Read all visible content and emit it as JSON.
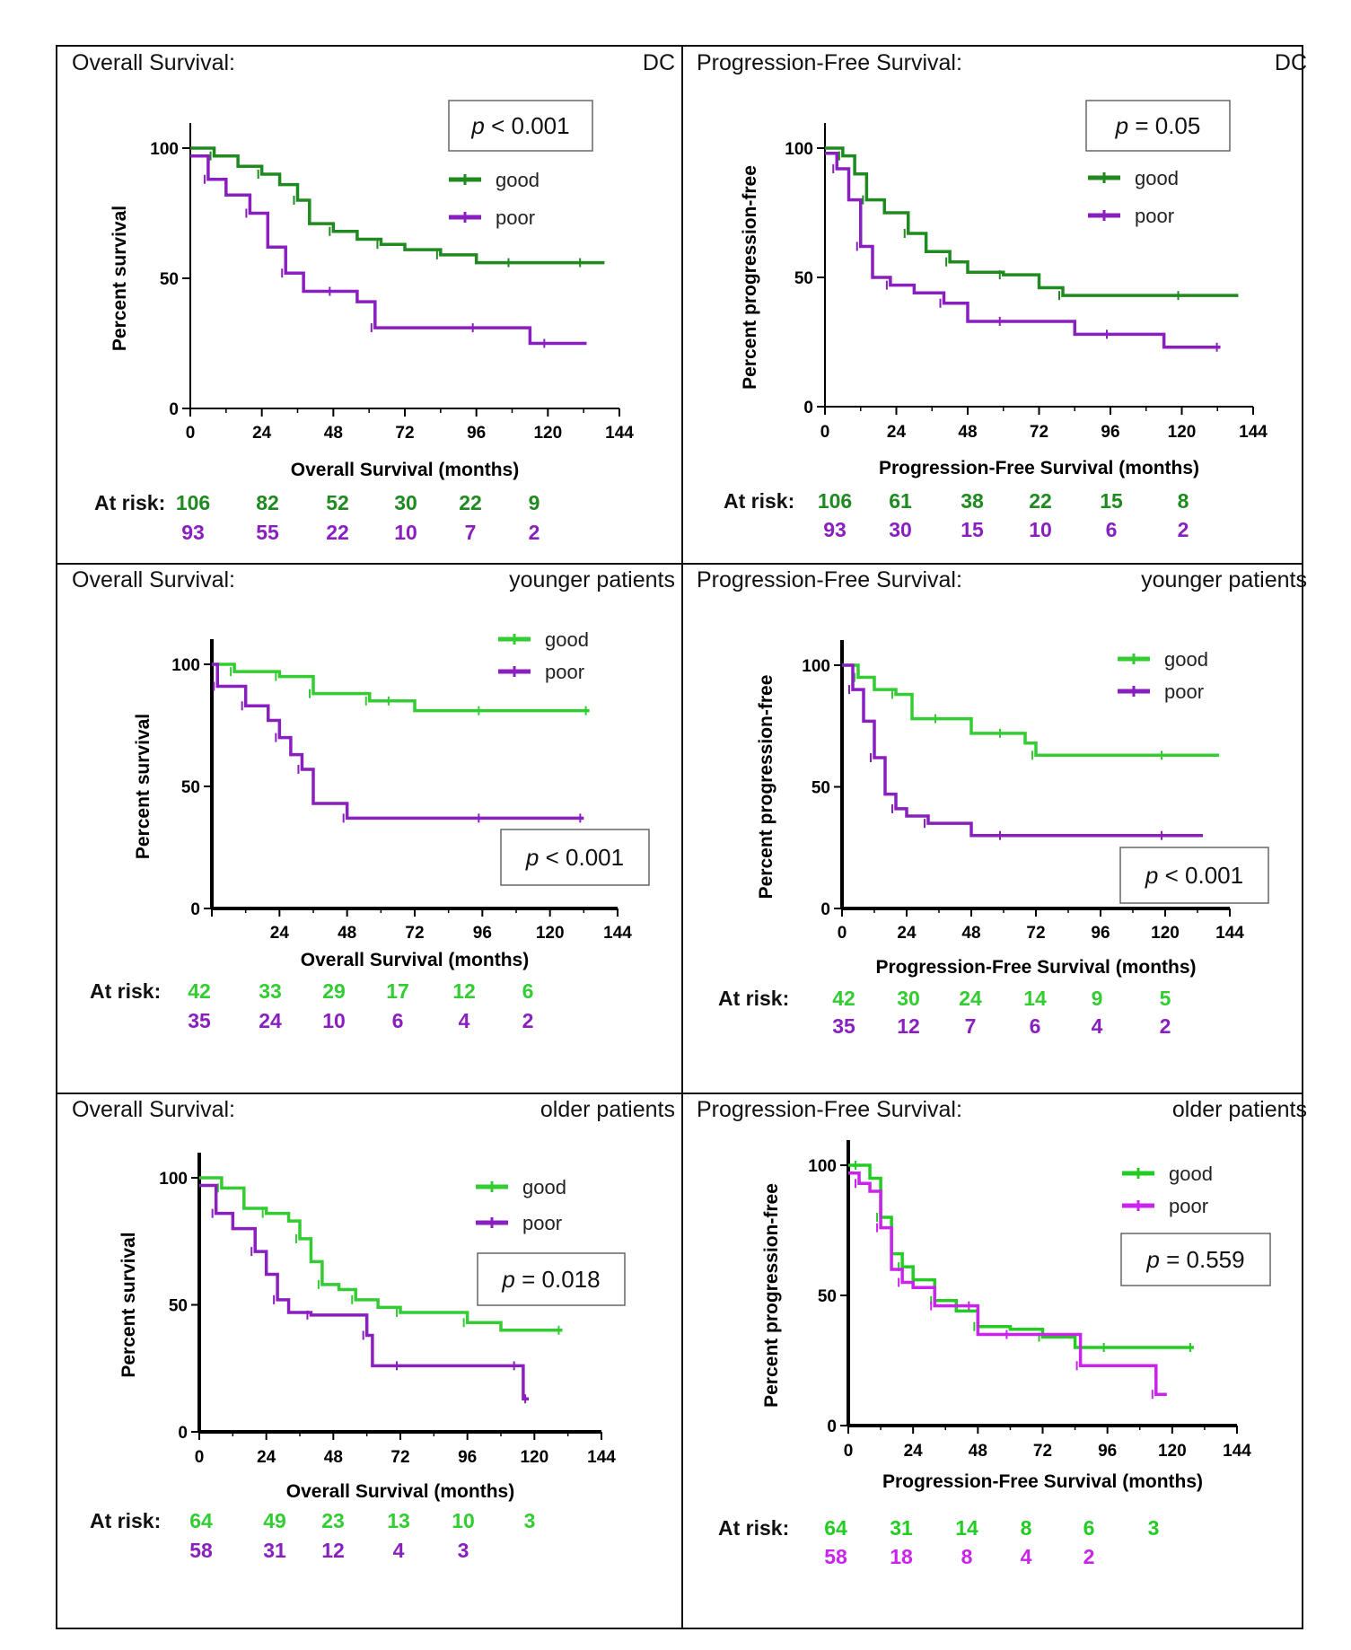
{
  "chart_data": [
    {
      "type": "line",
      "subtype": "kaplan-meier",
      "panel_title": "Overall Survival:",
      "panel_tag": "DC",
      "xlabel": "Overall  Survival (months)",
      "ylabel": "Percent survival",
      "xlim": [
        0,
        144
      ],
      "ylim": [
        0,
        100
      ],
      "xticks": [
        "0",
        "24",
        "48",
        "72",
        "96",
        "120",
        "144"
      ],
      "yticks": [
        "0",
        "50",
        "100"
      ],
      "pvalue": {
        "label": "p",
        "text": " < 0.001"
      },
      "legend_position": "top-right",
      "series": [
        {
          "name": "good",
          "color": "#1f8a1f",
          "x": [
            0,
            8,
            16,
            24,
            30,
            36,
            40,
            48,
            56,
            64,
            72,
            84,
            96,
            108,
            120,
            132,
            139
          ],
          "y": [
            100,
            97,
            93,
            90,
            86,
            80,
            71,
            68,
            65,
            63,
            61,
            59,
            56,
            56,
            56,
            56,
            56
          ]
        },
        {
          "name": "poor",
          "color": "#8a1fbf",
          "x": [
            0,
            6,
            12,
            20,
            26,
            32,
            38,
            48,
            56,
            62,
            72,
            96,
            114,
            120,
            133
          ],
          "y": [
            97,
            88,
            82,
            75,
            62,
            52,
            45,
            45,
            41,
            31,
            31,
            31,
            25,
            25,
            25
          ]
        }
      ],
      "at_risk_label": "At risk:",
      "at_risk": [
        [
          "106",
          "82",
          "52",
          "30",
          "22",
          "9"
        ],
        [
          "93",
          "55",
          "22",
          "10",
          "7",
          "2"
        ]
      ]
    },
    {
      "type": "line",
      "subtype": "kaplan-meier",
      "panel_title": "Progression-Free Survival:",
      "panel_tag": "DC",
      "xlabel": "Progression-Free Survival (months)",
      "ylabel": "Percent progression-free",
      "xlim": [
        0,
        144
      ],
      "ylim": [
        0,
        100
      ],
      "xticks": [
        "0",
        "24",
        "48",
        "72",
        "96",
        "120",
        "144"
      ],
      "yticks": [
        "0",
        "50",
        "100"
      ],
      "pvalue": {
        "label": "p",
        "text": " = 0.05"
      },
      "legend_position": "top-right",
      "series": [
        {
          "name": "good",
          "color": "#1f8a1f",
          "x": [
            0,
            6,
            10,
            14,
            20,
            28,
            34,
            42,
            48,
            60,
            72,
            80,
            96,
            120,
            139
          ],
          "y": [
            100,
            97,
            90,
            80,
            75,
            67,
            60,
            56,
            52,
            51,
            46,
            43,
            43,
            43,
            43
          ]
        },
        {
          "name": "poor",
          "color": "#8a1fbf",
          "x": [
            0,
            4,
            8,
            12,
            16,
            22,
            30,
            40,
            48,
            60,
            84,
            96,
            114,
            133
          ],
          "y": [
            98,
            92,
            80,
            62,
            50,
            47,
            44,
            40,
            33,
            33,
            28,
            28,
            23,
            23
          ]
        }
      ],
      "at_risk_label": "At risk:",
      "at_risk": [
        [
          "106",
          "61",
          "38",
          "22",
          "15",
          "8"
        ],
        [
          "93",
          "30",
          "15",
          "10",
          "6",
          "2"
        ]
      ]
    },
    {
      "type": "line",
      "subtype": "kaplan-meier",
      "panel_title": "Overall Survival:",
      "panel_tag": "younger patients",
      "xlabel": "Overall Survival (months)",
      "ylabel": "Percent survival",
      "xlim": [
        0,
        144
      ],
      "ylim": [
        0,
        100
      ],
      "xticks": [
        "",
        "24",
        "48",
        "72",
        "96",
        "120",
        "144"
      ],
      "yticks": [
        "0",
        "50",
        "100"
      ],
      "pvalue": {
        "label": "p",
        "text": " < 0.001"
      },
      "legend_position": "top-right",
      "series": [
        {
          "name": "good",
          "color": "#33cc33",
          "x": [
            0,
            8,
            16,
            24,
            32,
            36,
            48,
            56,
            60,
            64,
            72,
            96,
            120,
            134
          ],
          "y": [
            100,
            97,
            97,
            95,
            95,
            88,
            88,
            85,
            85,
            85,
            81,
            81,
            81,
            81
          ]
        },
        {
          "name": "poor",
          "color": "#8a1fbf",
          "x": [
            0,
            2,
            8,
            12,
            20,
            24,
            28,
            32,
            36,
            48,
            60,
            96,
            120,
            132
          ],
          "y": [
            100,
            91,
            91,
            83,
            77,
            70,
            63,
            57,
            43,
            37,
            37,
            37,
            37,
            37
          ]
        }
      ],
      "at_risk_label": "At risk:",
      "at_risk": [
        [
          "42",
          "33",
          "29",
          "17",
          "12",
          "6"
        ],
        [
          "35",
          "24",
          "10",
          "6",
          "4",
          "2"
        ]
      ]
    },
    {
      "type": "line",
      "subtype": "kaplan-meier",
      "panel_title": "Progression-Free Survival:",
      "panel_tag": "younger patients",
      "xlabel": "Progression-Free Survival (months)",
      "ylabel": "Percent progression-free",
      "xlim": [
        0,
        144
      ],
      "ylim": [
        0,
        100
      ],
      "xticks": [
        "0",
        "24",
        "48",
        "72",
        "96",
        "120",
        "144"
      ],
      "yticks": [
        "0",
        "50",
        "100"
      ],
      "pvalue": {
        "label": "p",
        "text": " < 0.001"
      },
      "legend_position": "top-right",
      "series": [
        {
          "name": "good",
          "color": "#33cc33",
          "x": [
            0,
            6,
            12,
            20,
            26,
            36,
            48,
            60,
            68,
            72,
            96,
            120,
            140
          ],
          "y": [
            100,
            95,
            90,
            88,
            78,
            78,
            72,
            72,
            68,
            63,
            63,
            63,
            63
          ]
        },
        {
          "name": "poor",
          "color": "#8a1fbf",
          "x": [
            0,
            4,
            8,
            12,
            16,
            20,
            24,
            32,
            48,
            60,
            96,
            120,
            134
          ],
          "y": [
            100,
            90,
            77,
            62,
            47,
            41,
            38,
            35,
            30,
            30,
            30,
            30,
            30
          ]
        }
      ],
      "at_risk_label": "At risk:",
      "at_risk": [
        [
          "42",
          "30",
          "24",
          "14",
          "9",
          "5"
        ],
        [
          "35",
          "12",
          "7",
          "6",
          "4",
          "2"
        ]
      ]
    },
    {
      "type": "line",
      "subtype": "kaplan-meier",
      "panel_title": "Overall Survival:",
      "panel_tag": "older patients",
      "xlabel": "Overall Survival (months)",
      "ylabel": "Percent survival",
      "xlim": [
        0,
        144
      ],
      "ylim": [
        0,
        100
      ],
      "xticks": [
        "0",
        "24",
        "48",
        "72",
        "96",
        "120",
        "144"
      ],
      "yticks": [
        "0",
        "50",
        "100"
      ],
      "pvalue": {
        "label": "p",
        "text": " = 0.018"
      },
      "legend_position": "top-right",
      "series": [
        {
          "name": "good",
          "color": "#33cc33",
          "x": [
            0,
            8,
            16,
            24,
            32,
            36,
            40,
            44,
            50,
            56,
            64,
            72,
            84,
            96,
            108,
            130
          ],
          "y": [
            100,
            96,
            88,
            86,
            83,
            76,
            67,
            58,
            56,
            52,
            49,
            47,
            47,
            43,
            40,
            40
          ]
        },
        {
          "name": "poor",
          "color": "#8a1fbf",
          "x": [
            0,
            6,
            12,
            20,
            24,
            28,
            32,
            40,
            54,
            60,
            62,
            72,
            96,
            114,
            116,
            118
          ],
          "y": [
            97,
            86,
            80,
            71,
            62,
            52,
            47,
            46,
            46,
            38,
            26,
            26,
            26,
            26,
            13,
            13
          ]
        }
      ],
      "at_risk_label": "At risk:",
      "at_risk": [
        [
          "64",
          "49",
          "23",
          "13",
          "10",
          "3"
        ],
        [
          "58",
          "31",
          "12",
          "4",
          "3",
          ""
        ]
      ]
    },
    {
      "type": "line",
      "subtype": "kaplan-meier",
      "panel_title": "Progression-Free Survival:",
      "panel_tag": "older patients",
      "xlabel": "Progression-Free Survival (months)",
      "ylabel": "Percent progression-free",
      "xlim": [
        0,
        144
      ],
      "ylim": [
        0,
        100
      ],
      "xticks": [
        "0",
        "24",
        "48",
        "72",
        "96",
        "120",
        "144"
      ],
      "yticks": [
        "0",
        "50",
        "100"
      ],
      "pvalue": {
        "label": "p",
        "text": "  = 0.559"
      },
      "legend_position": "top-right",
      "series": [
        {
          "name": "good",
          "color": "#22cc22",
          "x": [
            0,
            4,
            8,
            12,
            16,
            20,
            24,
            32,
            40,
            48,
            60,
            72,
            84,
            96,
            120,
            128
          ],
          "y": [
            100,
            100,
            95,
            80,
            66,
            61,
            56,
            48,
            44,
            38,
            37,
            34,
            30,
            30,
            30,
            30
          ]
        },
        {
          "name": "poor",
          "color": "#cc22ee",
          "x": [
            0,
            4,
            8,
            12,
            16,
            20,
            24,
            32,
            40,
            46,
            48,
            60,
            72,
            86,
            96,
            114,
            118
          ],
          "y": [
            97,
            93,
            90,
            76,
            60,
            55,
            53,
            46,
            46,
            46,
            35,
            35,
            35,
            23,
            23,
            12,
            12
          ]
        }
      ],
      "at_risk_label": "At risk:",
      "at_risk": [
        [
          "64",
          "31",
          "14",
          "8",
          "6",
          "3"
        ],
        [
          "58",
          "18",
          "8",
          "4",
          "2",
          ""
        ]
      ]
    }
  ]
}
